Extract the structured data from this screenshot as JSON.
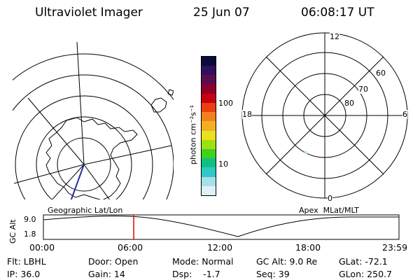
{
  "header": {
    "instrument": "Ultraviolet Imager",
    "date": "25 Jun 07",
    "time": "06:08:17 UT"
  },
  "color_scale": {
    "unit_label": "photon cm⁻²s⁻¹",
    "ticks": [
      "100",
      "10"
    ],
    "colors": [
      "#0a0a3c",
      "#30105a",
      "#5a0c50",
      "#900024",
      "#c80010",
      "#e84010",
      "#f08020",
      "#f0b020",
      "#e8e020",
      "#a0e010",
      "#40d020",
      "#10c080",
      "#30c8c8",
      "#a8e0e8",
      "#e0f0f8"
    ]
  },
  "geographic_panel": {
    "label": "Geographic Lat/Lon"
  },
  "apex_panel": {
    "label": "Apex  MLat/MLT",
    "mlt_labels": {
      "top": "12",
      "left": "18",
      "right": "6",
      "bottom": "0"
    },
    "lat_labels": [
      "60",
      "70",
      "80"
    ]
  },
  "altitude_plot": {
    "ylabel": "GC Alt",
    "yticks": [
      "9.0",
      "1.8"
    ],
    "xticks": [
      "00:00",
      "06:00",
      "12:00",
      "18:00",
      "23:59"
    ],
    "current_time_fraction": 0.254
  },
  "info": {
    "flt": "Flt: LBHL",
    "ip": "IP: 36.0",
    "door": "Door: Open",
    "gain": "Gain: 14",
    "mode": "Mode: Normal",
    "dsp": "Dsp:    -1.7",
    "gcalt": "GC Alt: 9.0 Re",
    "seq": "Seq: 39",
    "glat": "GLat: -72.1",
    "glon": "GLon: 250.7"
  }
}
